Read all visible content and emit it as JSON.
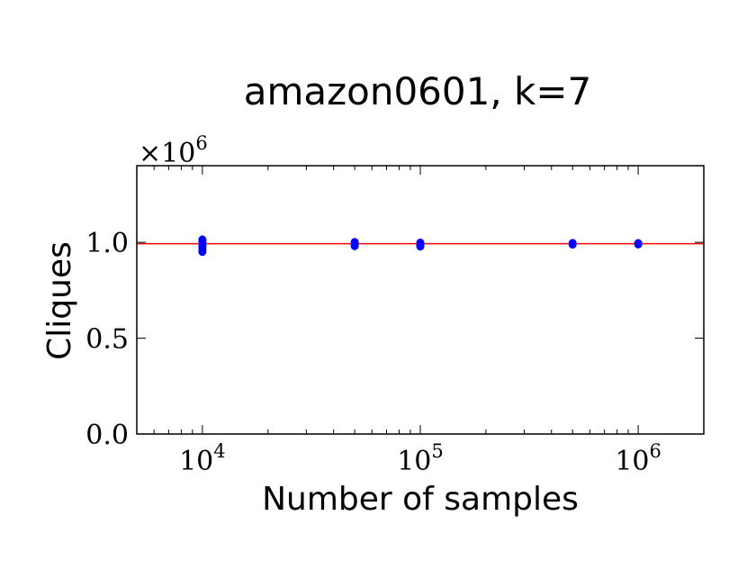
{
  "chart_data": {
    "type": "scatter",
    "title": "amazon0601, k=7",
    "xlabel": "Number of samples",
    "ylabel": "Cliques",
    "x_scale": "log",
    "xlim": [
      5000,
      2000000
    ],
    "ylim": [
      0,
      1400000
    ],
    "y_offset_label": {
      "base": "×10",
      "exp": "6"
    },
    "x_ticks": [
      {
        "value": 10000,
        "base": "10",
        "exp": "4"
      },
      {
        "value": 100000,
        "base": "10",
        "exp": "5"
      },
      {
        "value": 1000000,
        "base": "10",
        "exp": "6"
      }
    ],
    "y_ticks": [
      {
        "value": 0,
        "label": "0.0"
      },
      {
        "value": 500000,
        "label": "0.5"
      },
      {
        "value": 1000000,
        "label": "1.0"
      }
    ],
    "reference_line": {
      "y": 993000,
      "color": "#ff0000"
    },
    "series": [
      {
        "color": "#0000ff",
        "points": [
          {
            "x": 10000,
            "y": 1015000
          },
          {
            "x": 10000,
            "y": 1008000
          },
          {
            "x": 10000,
            "y": 1000000
          },
          {
            "x": 10000,
            "y": 992000
          },
          {
            "x": 10000,
            "y": 985000
          },
          {
            "x": 10000,
            "y": 975000
          },
          {
            "x": 10000,
            "y": 962000
          },
          {
            "x": 10000,
            "y": 950000
          },
          {
            "x": 50000,
            "y": 1002000
          },
          {
            "x": 50000,
            "y": 995000
          },
          {
            "x": 50000,
            "y": 988000
          },
          {
            "x": 50000,
            "y": 980000
          },
          {
            "x": 100000,
            "y": 999000
          },
          {
            "x": 100000,
            "y": 993000
          },
          {
            "x": 100000,
            "y": 986000
          },
          {
            "x": 100000,
            "y": 978000
          },
          {
            "x": 500000,
            "y": 997000
          },
          {
            "x": 500000,
            "y": 992000
          },
          {
            "x": 500000,
            "y": 988000
          },
          {
            "x": 1000000,
            "y": 996000
          },
          {
            "x": 1000000,
            "y": 992000
          },
          {
            "x": 1000000,
            "y": 989000
          }
        ]
      }
    ],
    "grid": false,
    "legend": "none"
  }
}
